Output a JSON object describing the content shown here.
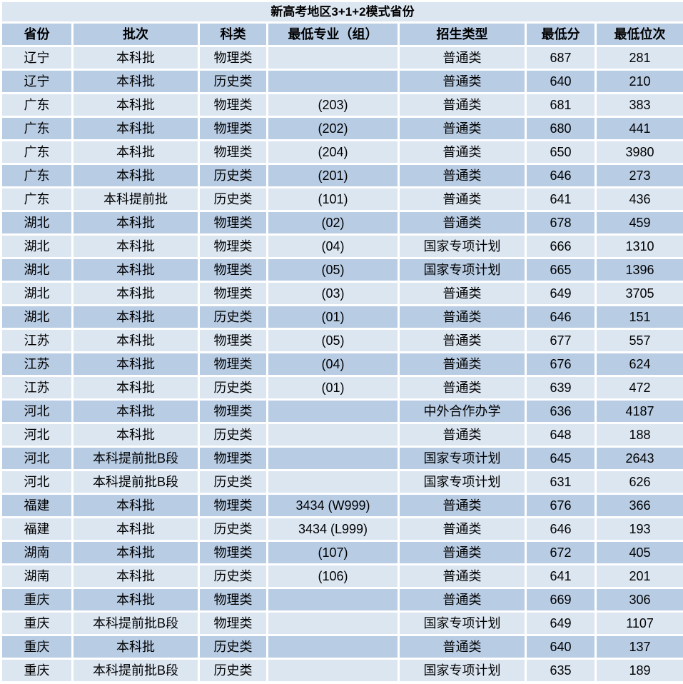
{
  "title": "新高考地区3+1+2模式省份",
  "colors": {
    "title_bg": "#DCE6F1",
    "header_bg": "#B8CCE4",
    "row_light": "#DCE6F1",
    "row_dark": "#B8CCE4",
    "grid_line": "#FFFFFF",
    "text": "#000000"
  },
  "table": {
    "columns": [
      "省份",
      "批次",
      "科类",
      "最低专业（组）",
      "招生类型",
      "最低分",
      "最低位次"
    ],
    "column_keys": [
      "province",
      "batch",
      "subject",
      "major-group",
      "admission-type",
      "min-score",
      "min-rank"
    ],
    "rows": [
      [
        "辽宁",
        "本科批",
        "物理类",
        "",
        "普通类",
        "687",
        "281"
      ],
      [
        "辽宁",
        "本科批",
        "历史类",
        "",
        "普通类",
        "640",
        "210"
      ],
      [
        "广东",
        "本科批",
        "物理类",
        "(203)",
        "普通类",
        "681",
        "383"
      ],
      [
        "广东",
        "本科批",
        "物理类",
        "(202)",
        "普通类",
        "680",
        "441"
      ],
      [
        "广东",
        "本科批",
        "物理类",
        "(204)",
        "普通类",
        "650",
        "3980"
      ],
      [
        "广东",
        "本科批",
        "历史类",
        "(201)",
        "普通类",
        "646",
        "273"
      ],
      [
        "广东",
        "本科提前批",
        "历史类",
        "(101)",
        "普通类",
        "641",
        "436"
      ],
      [
        "湖北",
        "本科批",
        "物理类",
        "(02)",
        "普通类",
        "678",
        "459"
      ],
      [
        "湖北",
        "本科批",
        "物理类",
        "(04)",
        "国家专项计划",
        "666",
        "1310"
      ],
      [
        "湖北",
        "本科批",
        "物理类",
        "(05)",
        "国家专项计划",
        "665",
        "1396"
      ],
      [
        "湖北",
        "本科批",
        "物理类",
        "(03)",
        "普通类",
        "649",
        "3705"
      ],
      [
        "湖北",
        "本科批",
        "历史类",
        "(01)",
        "普通类",
        "646",
        "151"
      ],
      [
        "江苏",
        "本科批",
        "物理类",
        "(05)",
        "普通类",
        "677",
        "557"
      ],
      [
        "江苏",
        "本科批",
        "物理类",
        "(04)",
        "普通类",
        "676",
        "624"
      ],
      [
        "江苏",
        "本科批",
        "历史类",
        "(01)",
        "普通类",
        "639",
        "472"
      ],
      [
        "河北",
        "本科批",
        "物理类",
        "",
        "中外合作办学",
        "636",
        "4187"
      ],
      [
        "河北",
        "本科批",
        "历史类",
        "",
        "普通类",
        "648",
        "188"
      ],
      [
        "河北",
        "本科提前批B段",
        "物理类",
        "",
        "国家专项计划",
        "645",
        "2643"
      ],
      [
        "河北",
        "本科提前批B段",
        "历史类",
        "",
        "国家专项计划",
        "631",
        "626"
      ],
      [
        "福建",
        "本科批",
        "物理类",
        "3434 (W999)",
        "普通类",
        "676",
        "366"
      ],
      [
        "福建",
        "本科批",
        "历史类",
        "3434 (L999)",
        "普通类",
        "646",
        "193"
      ],
      [
        "湖南",
        "本科批",
        "物理类",
        "(107)",
        "普通类",
        "672",
        "405"
      ],
      [
        "湖南",
        "本科批",
        "历史类",
        "(106)",
        "普通类",
        "641",
        "201"
      ],
      [
        "重庆",
        "本科批",
        "物理类",
        "",
        "普通类",
        "669",
        "306"
      ],
      [
        "重庆",
        "本科提前批B段",
        "物理类",
        "",
        "国家专项计划",
        "649",
        "1107"
      ],
      [
        "重庆",
        "本科批",
        "历史类",
        "",
        "普通类",
        "640",
        "137"
      ],
      [
        "重庆",
        "本科提前批B段",
        "历史类",
        "",
        "国家专项计划",
        "635",
        "189"
      ]
    ]
  }
}
